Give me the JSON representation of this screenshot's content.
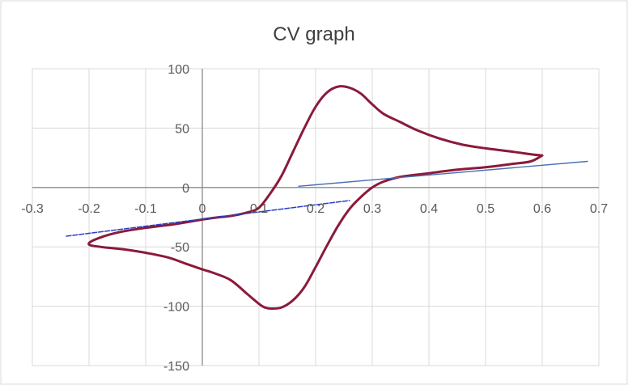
{
  "chart_data": {
    "type": "line",
    "title": "CV graph",
    "xlabel": "",
    "ylabel": "",
    "xlim": [
      -0.3,
      0.7
    ],
    "ylim": [
      -150,
      100
    ],
    "x_ticks": [
      "-0.3",
      "-0.2",
      "-0.1",
      "0",
      "0.1",
      "0.2",
      "0.3",
      "0.4",
      "0.5",
      "0.6",
      "0.7"
    ],
    "y_ticks": [
      "100",
      "50",
      "0",
      "-50",
      "-100",
      "-150"
    ],
    "grid": true,
    "legend": "none",
    "series": [
      {
        "color": "#8b1a3a",
        "x": [
          0.6,
          0.58,
          0.55,
          0.5,
          0.45,
          0.4,
          0.35,
          0.32,
          0.3,
          0.28,
          0.26,
          0.24,
          0.22,
          0.2,
          0.18,
          0.16,
          0.14,
          0.12,
          0.11,
          0.1,
          0.08,
          0.05,
          0.02,
          0.0,
          -0.03,
          -0.06,
          -0.1,
          -0.14,
          -0.18,
          -0.2,
          -0.19,
          -0.15,
          -0.1,
          -0.05,
          0.0,
          0.03,
          0.05,
          0.08,
          0.1,
          0.12,
          0.14,
          0.16,
          0.18,
          0.2,
          0.22,
          0.24,
          0.26,
          0.28,
          0.3,
          0.32,
          0.35,
          0.38,
          0.42,
          0.46,
          0.5,
          0.55,
          0.58,
          0.6
        ],
        "y": [
          27,
          22,
          20,
          17,
          15,
          12,
          9,
          5,
          0,
          -8,
          -18,
          -32,
          -49,
          -67,
          -84,
          -95,
          -101,
          -102,
          -101,
          -98,
          -90,
          -78,
          -72,
          -69,
          -64,
          -59,
          -55,
          -52,
          -50,
          -48,
          -44,
          -38,
          -34,
          -31,
          -27,
          -25,
          -24,
          -21,
          -17,
          -5,
          10,
          30,
          50,
          68,
          80,
          85,
          84,
          79,
          70,
          62,
          55,
          48,
          41,
          36,
          33,
          30,
          28,
          27
        ]
      },
      {
        "color": "#4a6fb5",
        "x": [
          0.17,
          0.68
        ],
        "y": [
          1,
          22
        ]
      },
      {
        "color": "#2a3fc8",
        "x": [
          -0.24,
          0.26
        ],
        "y": [
          -41,
          -11
        ]
      }
    ]
  }
}
